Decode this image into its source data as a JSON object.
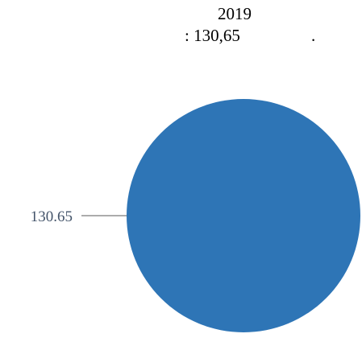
{
  "chart_data": {
    "type": "pie",
    "title_line1": "2019",
    "title_line2": ": 130,65",
    "title_period": ".",
    "categories": [
      ""
    ],
    "values": [
      130.65
    ],
    "data_labels": [
      "130.65"
    ],
    "colors": [
      "#2e75b6"
    ],
    "label_color": "#44546a",
    "leader_color": "#595959",
    "legend": "none"
  }
}
